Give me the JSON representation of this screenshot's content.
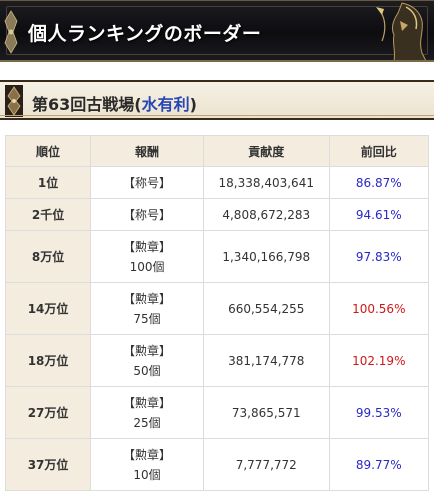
{
  "page_title": "個人ランキングのボーダー",
  "section": {
    "prefix": "第63回古戦場",
    "paren_open": "(",
    "element": "水有利",
    "paren_close": ")"
  },
  "table": {
    "headers": [
      "順位",
      "報酬",
      "貢献度",
      "前回比"
    ],
    "rows": [
      {
        "rank": "1位",
        "reward": [
          "【称号】"
        ],
        "points": "18,338,403,641",
        "ratio": "86.87%"
      },
      {
        "rank": "2千位",
        "reward": [
          "【称号】"
        ],
        "points": "4,808,672,283",
        "ratio": "94.61%"
      },
      {
        "rank": "8万位",
        "reward": [
          "【勲章】",
          "100個"
        ],
        "points": "1,340,166,798",
        "ratio": "97.83%"
      },
      {
        "rank": "14万位",
        "reward": [
          "【勲章】",
          "75個"
        ],
        "points": "660,554,255",
        "ratio": "100.56%"
      },
      {
        "rank": "18万位",
        "reward": [
          "【勲章】",
          "50個"
        ],
        "points": "381,174,778",
        "ratio": "102.19%"
      },
      {
        "rank": "27万位",
        "reward": [
          "【勲章】",
          "25個"
        ],
        "points": "73,865,571",
        "ratio": "99.53%"
      },
      {
        "rank": "37万位",
        "reward": [
          "【勲章】",
          "10個"
        ],
        "points": "7,777,772",
        "ratio": "89.77%"
      }
    ]
  },
  "colors": {
    "ratio_below_100": "#2828c8",
    "ratio_above_100": "#d01818",
    "accent_blue": "#2545b8",
    "header_bg": "#f3ecdf"
  }
}
